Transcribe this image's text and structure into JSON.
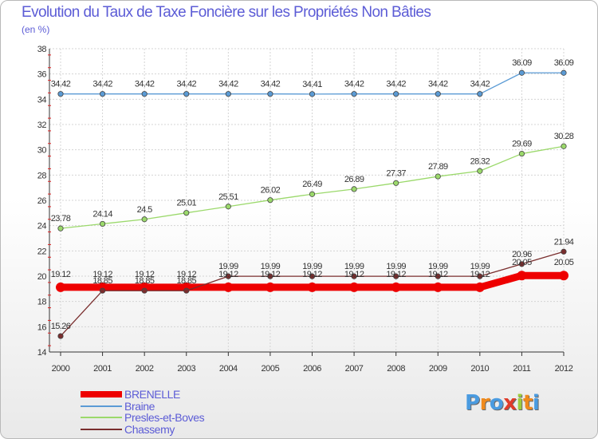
{
  "header": {
    "title": "Evolution du Taux de Taxe Foncière sur les Propriétés Non Bâties",
    "subtitle": "(en %)"
  },
  "brand": {
    "logo": "Proxiti",
    "letter_colors": [
      "#4a9be0",
      "#f08a1c",
      "#4a9be0",
      "#e03c2a",
      "#9ccd3c",
      "#f08a1c",
      "#4a9be0"
    ]
  },
  "chart_data": {
    "type": "line",
    "title": "Evolution du Taux de Taxe Foncière sur les Propriétés Non Bâties",
    "ylabel": "(en %)",
    "xlabel": "",
    "grid": true,
    "ylim": [
      14,
      38
    ],
    "ytick_step": 2,
    "x": [
      "2000",
      "2001",
      "2002",
      "2003",
      "2004",
      "2005",
      "2006",
      "2007",
      "2008",
      "2009",
      "2010",
      "2011",
      "2012"
    ],
    "series": [
      {
        "name": "BRENELLE",
        "color": "#ee0000",
        "values": [
          19.12,
          19.12,
          19.12,
          19.12,
          19.12,
          19.12,
          19.12,
          19.12,
          19.12,
          19.12,
          19.12,
          20.05,
          20.05
        ],
        "labels": [
          "19.12",
          "19.12",
          "19.12",
          "19.12",
          "19.12",
          "19.12",
          "19.12",
          "19.12",
          "19.12",
          "19.12",
          "19.12",
          "20.05",
          "20.05"
        ]
      },
      {
        "name": "Braine",
        "color": "#5b9bd5",
        "values": [
          34.42,
          34.42,
          34.42,
          34.42,
          34.42,
          34.42,
          34.41,
          34.42,
          34.42,
          34.42,
          34.42,
          36.09,
          36.09
        ],
        "labels": [
          "34.42",
          "34.42",
          "34.42",
          "34.42",
          "34.42",
          "34.42",
          "34.41",
          "34.42",
          "34.42",
          "34.42",
          "34.42",
          "36.09",
          "36.09"
        ]
      },
      {
        "name": "Presles-et-Boves",
        "color": "#9bd96b",
        "values": [
          23.78,
          24.14,
          24.5,
          25.01,
          25.51,
          26.02,
          26.49,
          26.89,
          27.37,
          27.89,
          28.32,
          29.69,
          30.28
        ],
        "labels": [
          "23.78",
          "24.14",
          "24.5",
          "25.01",
          "25.51",
          "26.02",
          "26.49",
          "26.89",
          "27.37",
          "27.89",
          "28.32",
          "29.69",
          "30.28"
        ]
      },
      {
        "name": "Chassemy",
        "color": "#7a2e2e",
        "values": [
          15.26,
          18.85,
          18.85,
          18.85,
          19.99,
          19.99,
          19.99,
          19.99,
          19.99,
          19.99,
          19.99,
          20.96,
          21.94
        ],
        "labels": [
          "15.26",
          "18.85",
          "18.85",
          "18.85",
          "19.99",
          "19.99",
          "19.99",
          "19.99",
          "19.99",
          "19.99",
          "19.99",
          "20.96",
          "21.94"
        ]
      }
    ]
  }
}
